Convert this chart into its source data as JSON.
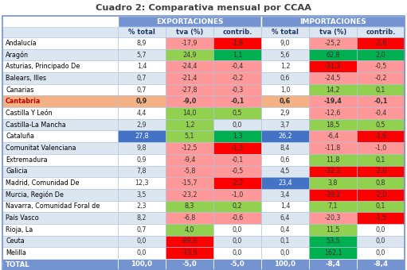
{
  "title": "Cuadro 2: Comparativa mensual por CCAA",
  "col_headers": [
    "% total",
    "tva (%)",
    "contrib.",
    "% total",
    "tva (%)",
    "contrib."
  ],
  "group_headers": [
    "EXPORTACIONES",
    "IMPORTACIONES"
  ],
  "rows": [
    {
      "region": "Andalucía",
      "exp_pct": 8.9,
      "exp_tva": -17.9,
      "exp_con": -1.8,
      "imp_pct": 9.0,
      "imp_tva": -25.2,
      "imp_con": -2.8
    },
    {
      "region": "Aragón",
      "exp_pct": 5.7,
      "exp_tva": 24.9,
      "exp_con": 1.1,
      "imp_pct": 5.6,
      "imp_tva": 62.8,
      "imp_con": 2.0
    },
    {
      "region": "Asturias, Principado De",
      "exp_pct": 1.4,
      "exp_tva": -24.4,
      "exp_con": -0.4,
      "imp_pct": 1.2,
      "imp_tva": -31.3,
      "imp_con": -0.5
    },
    {
      "region": "Balears, Illes",
      "exp_pct": 0.7,
      "exp_tva": -21.4,
      "exp_con": -0.2,
      "imp_pct": 0.6,
      "imp_tva": -24.5,
      "imp_con": -0.2
    },
    {
      "region": "Canarias",
      "exp_pct": 0.7,
      "exp_tva": -27.8,
      "exp_con": -0.3,
      "imp_pct": 1.0,
      "imp_tva": 14.2,
      "imp_con": 0.1
    },
    {
      "region": "Cantabria",
      "exp_pct": 0.9,
      "exp_tva": -9.0,
      "exp_con": -0.1,
      "imp_pct": 0.6,
      "imp_tva": -19.4,
      "imp_con": -0.1
    },
    {
      "region": "Castilla Y León",
      "exp_pct": 4.4,
      "exp_tva": 14.0,
      "exp_con": 0.5,
      "imp_pct": 2.9,
      "imp_tva": -12.6,
      "imp_con": -0.4
    },
    {
      "region": "Castilla-La Mancha",
      "exp_pct": 2.9,
      "exp_tva": 1.2,
      "exp_con": 0.0,
      "imp_pct": 3.7,
      "imp_tva": 18.5,
      "imp_con": 0.5
    },
    {
      "region": "Cataluña",
      "exp_pct": 27.8,
      "exp_tva": 5.1,
      "exp_con": 1.3,
      "imp_pct": 26.2,
      "imp_tva": -6.4,
      "imp_con": -1.6
    },
    {
      "region": "Comunitat Valenciana",
      "exp_pct": 9.8,
      "exp_tva": -12.5,
      "exp_con": -1.3,
      "imp_pct": 8.4,
      "imp_tva": -11.8,
      "imp_con": -1.0
    },
    {
      "region": "Extremadura",
      "exp_pct": 0.9,
      "exp_tva": -9.4,
      "exp_con": -0.1,
      "imp_pct": 0.6,
      "imp_tva": 11.8,
      "imp_con": 0.1
    },
    {
      "region": "Galicia",
      "exp_pct": 7.8,
      "exp_tva": -5.8,
      "exp_con": -0.5,
      "imp_pct": 4.5,
      "imp_tva": -32.3,
      "imp_con": -2.0
    },
    {
      "region": "Madrid, Comunidad De",
      "exp_pct": 12.3,
      "exp_tva": -15.7,
      "exp_con": -2.2,
      "imp_pct": 23.4,
      "imp_tva": 3.8,
      "imp_con": 0.8
    },
    {
      "region": "Murcia, Región De",
      "exp_pct": 3.5,
      "exp_tva": -23.2,
      "exp_con": -1.0,
      "imp_pct": 3.4,
      "imp_tva": -39.2,
      "imp_con": -2.0
    },
    {
      "region": "Navarra, Comunidad Foral de",
      "exp_pct": 2.3,
      "exp_tva": 8.3,
      "exp_con": 0.2,
      "imp_pct": 1.4,
      "imp_tva": 7.1,
      "imp_con": 0.1
    },
    {
      "region": "País Vasco",
      "exp_pct": 8.2,
      "exp_tva": -6.8,
      "exp_con": -0.6,
      "imp_pct": 6.4,
      "imp_tva": -20.3,
      "imp_con": -1.5
    },
    {
      "region": "Rioja, La",
      "exp_pct": 0.7,
      "exp_tva": 4.0,
      "exp_con": 0.0,
      "imp_pct": 0.4,
      "imp_tva": 11.5,
      "imp_con": 0.0
    },
    {
      "region": "Ceuta",
      "exp_pct": 0.0,
      "exp_tva": -89.9,
      "exp_con": 0.0,
      "imp_pct": 0.1,
      "imp_tva": 53.5,
      "imp_con": 0.0
    },
    {
      "region": "Melilla",
      "exp_pct": 0.0,
      "exp_tva": -73.9,
      "exp_con": 0.0,
      "imp_pct": 0.0,
      "imp_tva": 162.1,
      "imp_con": 0.0
    }
  ],
  "total": {
    "region": "TOTAL",
    "exp_pct": 100.0,
    "exp_tva": -5.0,
    "exp_con": -5.0,
    "imp_pct": 100.0,
    "imp_tva": -8.4,
    "imp_con": -8.4
  },
  "cantabria_index": 5,
  "bg_color": "#ffffff",
  "header_bg": "#7494d1",
  "header_text": "#ffffff",
  "subheader_bg": "#dce6f1",
  "subheader_text": "#1f3864",
  "row_even_bg": "#ffffff",
  "row_odd_bg": "#dce6f1",
  "cantabria_row_bg": "#f4b183",
  "total_row_bg": "#7494d1",
  "total_text": "#ffffff",
  "positive_strong": "#00b050",
  "positive_light": "#92d050",
  "negative_strong": "#ff0000",
  "negative_light": "#ff9999",
  "neutral_bg": "#ffffff",
  "title_color": "#404040",
  "region_text_color": "#000000",
  "cantabria_text": "#c00000",
  "border_color": "#7494d1",
  "blue_highlight_bg": "#4472c4",
  "blue_highlight_text": "#ffffff",
  "cell_border": "#aac0dd"
}
